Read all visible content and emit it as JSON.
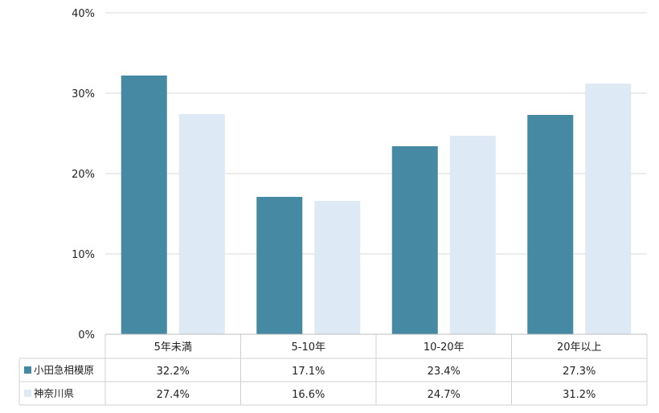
{
  "chart_data": {
    "type": "bar",
    "categories": [
      "5年未満",
      "5-10年",
      "10-20年",
      "20年以上"
    ],
    "series": [
      {
        "name": "小田急相模原",
        "values": [
          32.2,
          17.1,
          23.4,
          27.3
        ],
        "labels": [
          "32.2%",
          "17.1%",
          "23.4%",
          "27.3%"
        ],
        "color": "#4589a2"
      },
      {
        "name": "神奈川県",
        "values": [
          27.4,
          16.6,
          24.7,
          31.2
        ],
        "labels": [
          "27.4%",
          "16.6%",
          "24.7%",
          "31.2%"
        ],
        "color": "#dde9f4"
      }
    ],
    "ylim": [
      0,
      40
    ],
    "yticks": [
      0,
      10,
      20,
      30,
      40
    ],
    "ytick_labels": [
      "0%",
      "10%",
      "20%",
      "30%",
      "40%"
    ],
    "grid": true,
    "legend_placement": "data-table-rows"
  }
}
